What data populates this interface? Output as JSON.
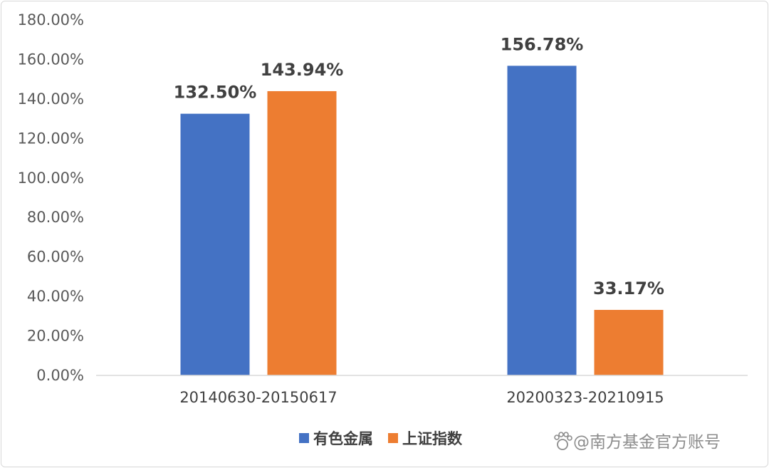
{
  "chart_data": {
    "type": "bar",
    "categories": [
      "20140630-20150617",
      "20200323-20210915"
    ],
    "series": [
      {
        "name": "有色金属",
        "color": "#4472c4",
        "values": [
          132.5,
          156.78
        ],
        "labels": [
          "132.50%",
          "156.78%"
        ]
      },
      {
        "name": "上证指数",
        "color": "#ed7d31",
        "values": [
          143.94,
          33.17
        ],
        "labels": [
          "143.94%",
          "33.17%"
        ]
      }
    ],
    "ylim": [
      0,
      180
    ],
    "yticks": [
      0,
      20,
      40,
      60,
      80,
      100,
      120,
      140,
      160,
      180
    ],
    "ytick_labels": [
      "0.00%",
      "20.00%",
      "40.00%",
      "60.00%",
      "80.00%",
      "100.00%",
      "120.00%",
      "140.00%",
      "160.00%",
      "180.00%"
    ],
    "grid": false,
    "legend_position": "bottom-center",
    "title": "",
    "xlabel": "",
    "ylabel": ""
  },
  "watermark": {
    "text": "@南方基金官方账号",
    "icon": "paw-icon"
  }
}
